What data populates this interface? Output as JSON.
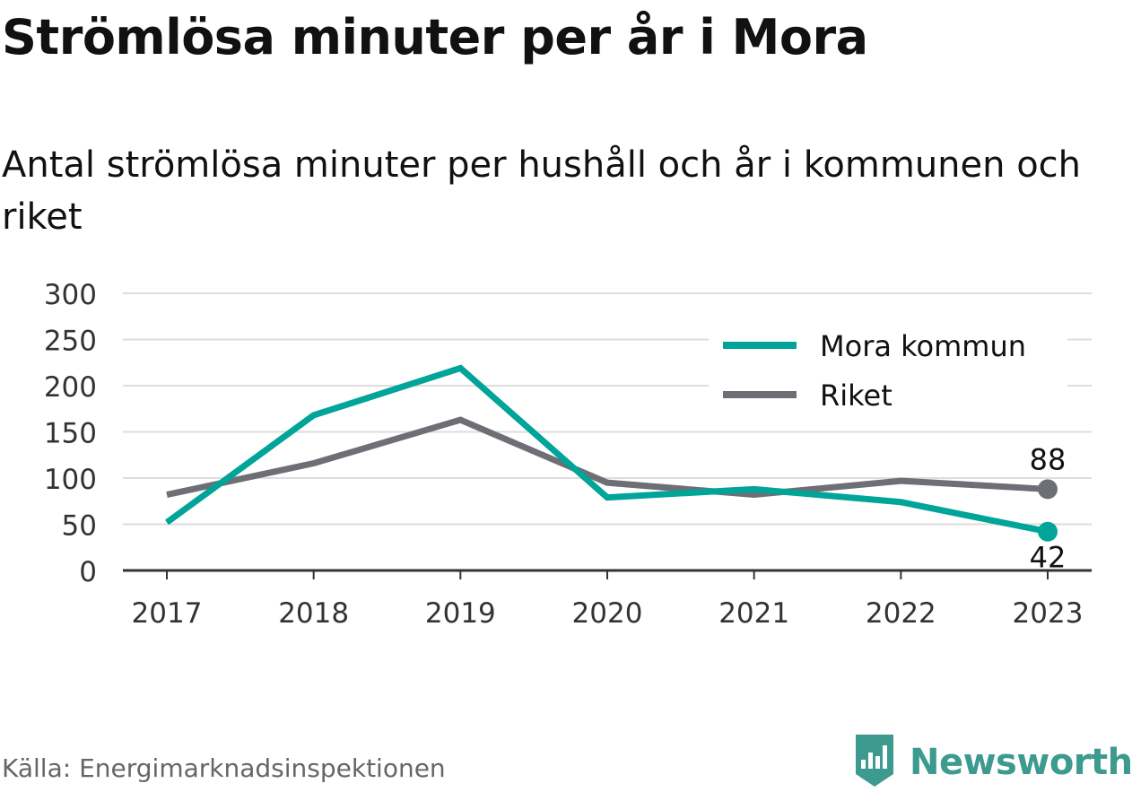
{
  "header": {
    "title": "Strömlösa minuter per år i Mora",
    "subtitle": "Antal strömlösa minuter per hushåll och år i kommunen och riket"
  },
  "footer": {
    "source": "Källa: Energimarknadsinspektionen",
    "brand": "Newsworthy",
    "brand_icon": "newsworthy-logo-icon"
  },
  "colors": {
    "mora": "#00a499",
    "riket": "#6e6e75",
    "grid": "#dddddd",
    "brand": "#3c9a8f"
  },
  "chart_data": {
    "type": "line",
    "title": "Strömlösa minuter per år i Mora",
    "subtitle": "Antal strömlösa minuter per hushåll och år i kommunen och riket",
    "x": [
      "2017",
      "2018",
      "2019",
      "2020",
      "2021",
      "2022",
      "2023"
    ],
    "y_ticks": [
      "0",
      "50",
      "100",
      "150",
      "200",
      "250",
      "300"
    ],
    "ylim": [
      0,
      300
    ],
    "grid": true,
    "legend_position": "top-right",
    "series": [
      {
        "name": "Mora kommun",
        "color": "#00a499",
        "values": [
          52,
          168,
          219,
          79,
          88,
          74,
          42
        ],
        "end_label": "42"
      },
      {
        "name": "Riket",
        "color": "#6e6e75",
        "values": [
          82,
          116,
          163,
          95,
          82,
          97,
          88
        ],
        "end_label": "88"
      }
    ]
  }
}
